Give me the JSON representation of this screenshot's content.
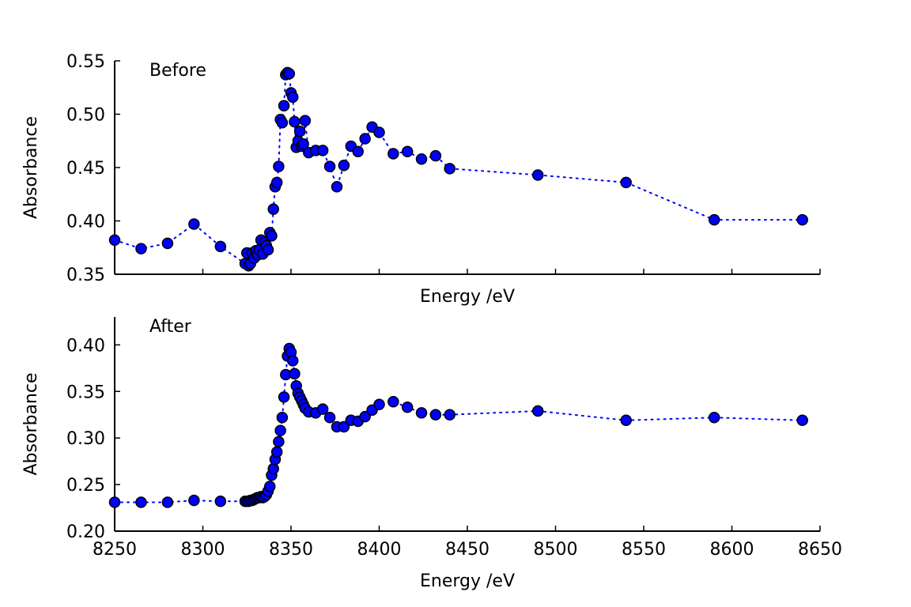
{
  "chart_data": [
    {
      "type": "scatter",
      "panel_label": "Before",
      "xlabel": "Energy /eV",
      "ylabel": "Absorbance",
      "xlim": [
        8250,
        8650
      ],
      "ylim": [
        0.35,
        0.55
      ],
      "x_ticks": [
        8250,
        8300,
        8350,
        8400,
        8450,
        8500,
        8550,
        8600,
        8650
      ],
      "x_tick_labels_shown": false,
      "y_ticks": [
        0.35,
        0.4,
        0.45,
        0.5,
        0.55
      ],
      "y_tick_labels": [
        "0.35",
        "0.40",
        "0.45",
        "0.50",
        "0.55"
      ],
      "grid": false,
      "marker_color": "#0000ff",
      "line_style": "dotted",
      "series": [
        {
          "x": [
            8250,
            8265,
            8280,
            8295,
            8310,
            8324,
            8325,
            8326,
            8327,
            8328,
            8329,
            8330,
            8331,
            8332,
            8333,
            8334,
            8335,
            8336,
            8337,
            8338,
            8339,
            8340,
            8341,
            8342,
            8343,
            8344,
            8345,
            8346,
            8347,
            8348,
            8349,
            8350,
            8351,
            8352,
            8353,
            8354,
            8355,
            8356,
            8357,
            8358,
            8360,
            8364,
            8368,
            8372,
            8376,
            8380,
            8384,
            8388,
            8392,
            8396,
            8400,
            8408,
            8416,
            8424,
            8432,
            8440,
            8490,
            8540,
            8590,
            8640
          ],
          "y": [
            0.382,
            0.374,
            0.379,
            0.397,
            0.376,
            0.36,
            0.37,
            0.358,
            0.36,
            0.37,
            0.365,
            0.372,
            0.368,
            0.373,
            0.382,
            0.369,
            0.38,
            0.377,
            0.373,
            0.389,
            0.386,
            0.411,
            0.432,
            0.436,
            0.451,
            0.495,
            0.492,
            0.508,
            0.537,
            0.539,
            0.538,
            0.52,
            0.516,
            0.493,
            0.469,
            0.475,
            0.484,
            0.47,
            0.472,
            0.494,
            0.464,
            0.466,
            0.466,
            0.451,
            0.432,
            0.452,
            0.47,
            0.465,
            0.477,
            0.488,
            0.483,
            0.463,
            0.465,
            0.458,
            0.461,
            0.449,
            0.443,
            0.436,
            0.401,
            0.401
          ]
        }
      ]
    },
    {
      "type": "scatter",
      "panel_label": "After",
      "xlabel": "Energy /eV",
      "ylabel": "Absorbance",
      "xlim": [
        8250,
        8650
      ],
      "ylim": [
        0.2,
        0.43
      ],
      "x_ticks": [
        8250,
        8300,
        8350,
        8400,
        8450,
        8500,
        8550,
        8600,
        8650
      ],
      "x_tick_labels": [
        "8250",
        "8300",
        "8350",
        "8400",
        "8450",
        "8500",
        "8550",
        "8600",
        "8650"
      ],
      "y_ticks": [
        0.2,
        0.25,
        0.3,
        0.35,
        0.4
      ],
      "y_tick_labels": [
        "0.20",
        "0.25",
        "0.30",
        "0.35",
        "0.40"
      ],
      "grid": false,
      "marker_color": "#0000ff",
      "line_style": "dotted",
      "series": [
        {
          "x": [
            8250,
            8265,
            8280,
            8295,
            8310,
            8324,
            8325,
            8326,
            8327,
            8328,
            8329,
            8330,
            8331,
            8332,
            8333,
            8334,
            8335,
            8336,
            8337,
            8338,
            8339,
            8340,
            8341,
            8342,
            8343,
            8344,
            8345,
            8346,
            8347,
            8348,
            8349,
            8350,
            8351,
            8352,
            8353,
            8354,
            8355,
            8356,
            8357,
            8358,
            8360,
            8364,
            8368,
            8372,
            8376,
            8380,
            8384,
            8388,
            8392,
            8396,
            8400,
            8408,
            8416,
            8424,
            8432,
            8440,
            8490,
            8540,
            8590,
            8640
          ],
          "y": [
            0.231,
            0.231,
            0.231,
            0.233,
            0.232,
            0.232,
            0.232,
            0.232,
            0.233,
            0.233,
            0.234,
            0.235,
            0.236,
            0.236,
            0.237,
            0.236,
            0.237,
            0.239,
            0.243,
            0.248,
            0.26,
            0.267,
            0.277,
            0.285,
            0.296,
            0.308,
            0.322,
            0.344,
            0.368,
            0.388,
            0.396,
            0.392,
            0.383,
            0.369,
            0.356,
            0.348,
            0.344,
            0.34,
            0.336,
            0.332,
            0.328,
            0.327,
            0.331,
            0.322,
            0.312,
            0.312,
            0.319,
            0.318,
            0.323,
            0.33,
            0.336,
            0.339,
            0.333,
            0.327,
            0.325,
            0.325,
            0.329,
            0.319,
            0.322,
            0.319
          ]
        }
      ]
    }
  ]
}
